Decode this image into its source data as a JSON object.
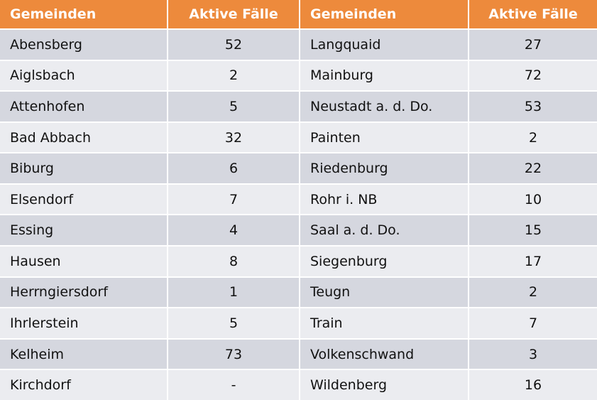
{
  "table": {
    "header": [
      "Gemeinden",
      "Aktive Fälle",
      "Gemeinden",
      "Aktive Fälle"
    ],
    "rows": [
      [
        "Abensberg",
        52,
        "Langquaid",
        27
      ],
      [
        "Aiglsbach",
        2,
        "Mainburg",
        72
      ],
      [
        "Attenhofen",
        5,
        "Neustadt a. d. Do.",
        53
      ],
      [
        "Bad Abbach",
        32,
        "Painten",
        2
      ],
      [
        "Biburg",
        6,
        "Riedenburg",
        22
      ],
      [
        "Elsendorf",
        7,
        "Rohr i. NB",
        10
      ],
      [
        "Essing",
        4,
        "Saal a. d. Do.",
        15
      ],
      [
        "Hausen",
        8,
        "Siegenburg",
        17
      ],
      [
        "Herrngiersdorf",
        1,
        "Teugn",
        2
      ],
      [
        "Ihrlerstein",
        5,
        "Train",
        7
      ],
      [
        "Kelheim",
        73,
        "Volkenschwand",
        3
      ],
      [
        "Kirchdorf",
        "-",
        "Wildenberg",
        16
      ]
    ]
  }
}
